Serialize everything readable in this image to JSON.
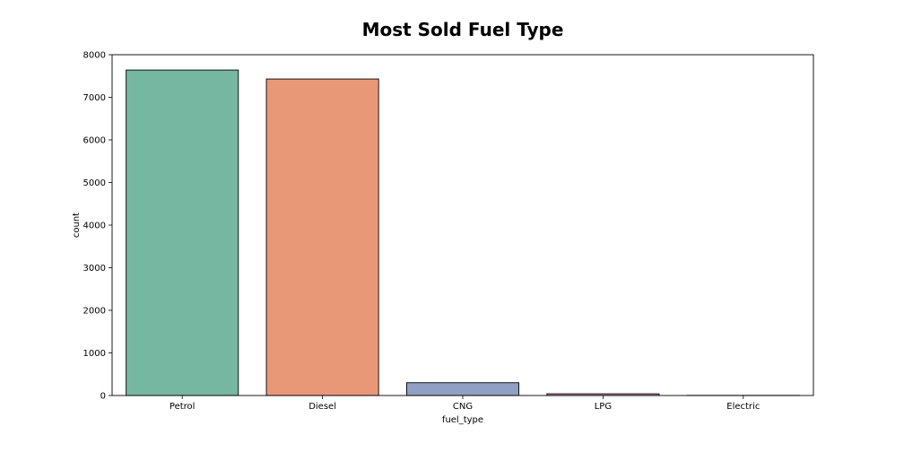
{
  "chart_data": {
    "type": "bar",
    "title": "Most Sold Fuel Type",
    "xlabel": "fuel_type",
    "ylabel": "count",
    "categories": [
      "Petrol",
      "Diesel",
      "CNG",
      "LPG",
      "Electric"
    ],
    "values": [
      7640,
      7430,
      300,
      40,
      3
    ],
    "ylim": [
      0,
      8000
    ],
    "yticks": [
      "0",
      "1000",
      "2000",
      "3000",
      "4000",
      "5000",
      "6000",
      "7000",
      "8000"
    ],
    "colors": [
      "#76b7a2",
      "#e99877",
      "#909fc3",
      "#d98fbd",
      "#a6d056"
    ],
    "grid": false,
    "legend": "none"
  }
}
